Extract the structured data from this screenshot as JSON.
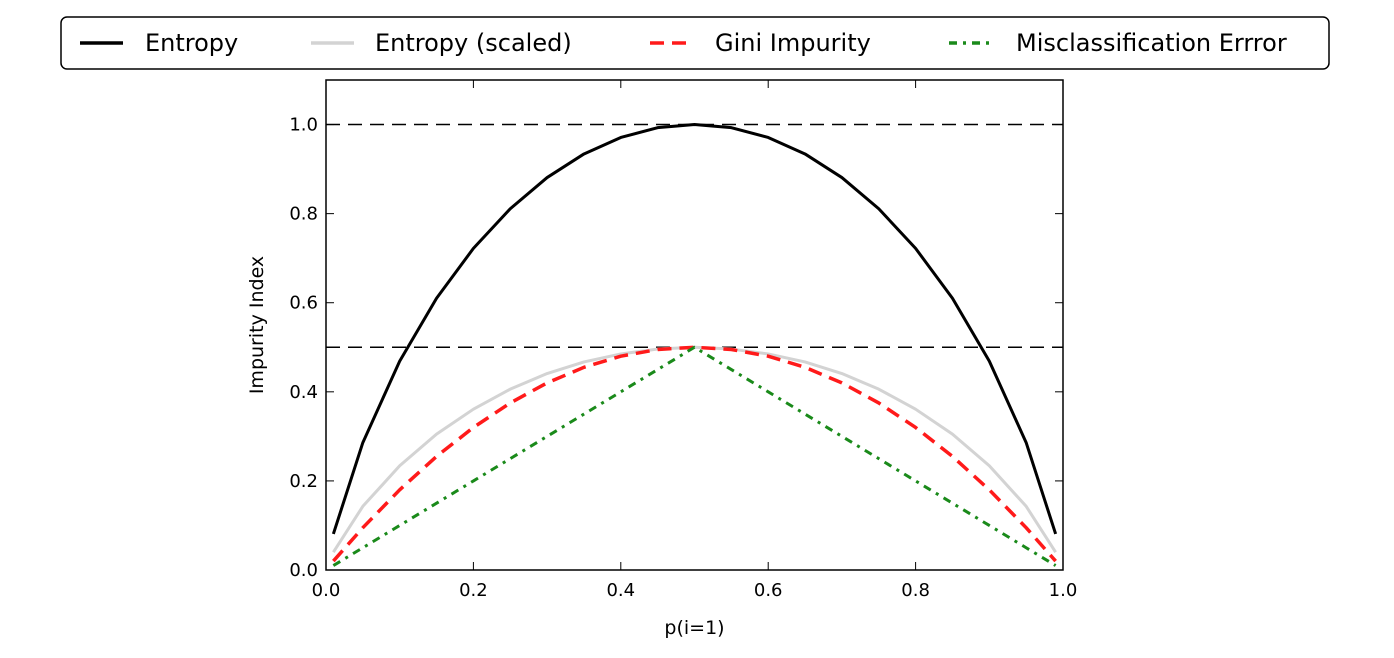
{
  "chart_data": {
    "type": "line",
    "title": "",
    "xlabel": "p(i=1)",
    "ylabel": "Impurity Index",
    "xlim": [
      0.0,
      1.0
    ],
    "ylim": [
      0.0,
      1.1
    ],
    "xticks": [
      0.0,
      0.2,
      0.4,
      0.6,
      0.8,
      1.0
    ],
    "yticks": [
      0.0,
      0.2,
      0.4,
      0.6,
      0.8,
      1.0
    ],
    "xtick_labels": [
      "0.0",
      "0.2",
      "0.4",
      "0.6",
      "0.8",
      "1.0"
    ],
    "ytick_labels": [
      "0.0",
      "0.2",
      "0.4",
      "0.6",
      "0.8",
      "1.0"
    ],
    "grid": false,
    "legend_position": "top-center",
    "reference_lines": [
      {
        "y": 1.0,
        "style": "dashed",
        "color": "#000000"
      },
      {
        "y": 0.5,
        "style": "dashed",
        "color": "#000000"
      }
    ],
    "x": [
      0.01,
      0.05,
      0.1,
      0.15,
      0.2,
      0.25,
      0.3,
      0.35,
      0.4,
      0.45,
      0.5,
      0.55,
      0.6,
      0.65,
      0.7,
      0.75,
      0.8,
      0.85,
      0.9,
      0.95,
      0.99
    ],
    "series": [
      {
        "name": "Entropy",
        "color": "#000000",
        "style": "solid",
        "values": [
          0.081,
          0.286,
          0.469,
          0.61,
          0.722,
          0.811,
          0.881,
          0.934,
          0.971,
          0.993,
          1.0,
          0.993,
          0.971,
          0.934,
          0.881,
          0.811,
          0.722,
          0.61,
          0.469,
          0.286,
          0.081
        ]
      },
      {
        "name": "Entropy (scaled)",
        "color": "#d3d3d3",
        "style": "solid",
        "values": [
          0.04,
          0.143,
          0.234,
          0.305,
          0.361,
          0.406,
          0.441,
          0.467,
          0.485,
          0.496,
          0.5,
          0.496,
          0.485,
          0.467,
          0.441,
          0.406,
          0.361,
          0.305,
          0.234,
          0.143,
          0.04
        ]
      },
      {
        "name": "Gini Impurity",
        "color": "#ff1a1a",
        "style": "dashed",
        "values": [
          0.02,
          0.095,
          0.18,
          0.255,
          0.32,
          0.375,
          0.42,
          0.455,
          0.48,
          0.495,
          0.5,
          0.495,
          0.48,
          0.455,
          0.42,
          0.375,
          0.32,
          0.255,
          0.18,
          0.095,
          0.02
        ]
      },
      {
        "name": "Misclassification Errror",
        "color": "#1a8a1a",
        "style": "dashdot",
        "values": [
          0.01,
          0.05,
          0.1,
          0.15,
          0.2,
          0.25,
          0.3,
          0.35,
          0.4,
          0.45,
          0.5,
          0.45,
          0.4,
          0.35,
          0.3,
          0.25,
          0.2,
          0.15,
          0.1,
          0.05,
          0.01
        ]
      }
    ]
  }
}
